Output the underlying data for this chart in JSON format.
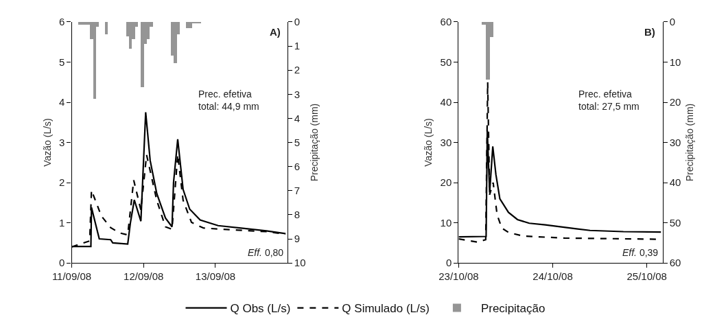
{
  "chart_data": [
    {
      "type": "line",
      "ylabel": "Vazão (L/s)",
      "y2label": "Precipitação (mm)",
      "xlim": [
        "--09-11T00:00",
        "--09-14T00:00"
      ],
      "xticks": [
        {
          "value": "--09-11T00:00",
          "label": "11/09/08"
        },
        {
          "value": "--09-12T00:00",
          "label": "12/09/08"
        },
        {
          "value": "--09-13T00:00",
          "label": "13/09/08"
        }
      ],
      "ylim": [
        0,
        6
      ],
      "yticks": [
        0,
        1,
        2,
        3,
        4,
        5,
        6
      ],
      "y2lim": [
        10,
        0
      ],
      "y2ticks": [
        0,
        1,
        2,
        3,
        4,
        5,
        6,
        7,
        8,
        9,
        10
      ],
      "legend": "bottom",
      "marker": "none",
      "annotations": [
        "A)",
        "Prec. efetiva\ntotal: 44,9 mm",
        "Eff. 0,80"
      ],
      "series": [
        {
          "name": "Q Obs (L/s)",
          "color": "#000000",
          "line_style": "solid",
          "x": [
            "--09-11T00:00",
            "--09-11T06:24",
            "--09-11T06:36",
            "--09-11T09:12",
            "--09-11T13:00",
            "--09-11T13:42",
            "--09-11T18:42",
            "--09-11T19:36",
            "--09-11T20:54",
            "--09-11T23:06",
            "--09-12T00:42",
            "--09-12T02:12",
            "--09-12T04:24",
            "--09-12T07:18",
            "--09-12T09:30",
            "--09-12T10:00",
            "--09-12T11:24",
            "--09-12T13:12",
            "--09-12T15:24",
            "--09-12T18:54",
            "--09-13T00:54",
            "--09-13T09:42",
            "--09-13T17:00",
            "--09-13T23:24"
          ],
          "values": [
            0.41,
            0.41,
            1.38,
            0.6,
            0.58,
            0.5,
            0.47,
            1.0,
            1.57,
            1.04,
            3.75,
            2.55,
            1.73,
            1.12,
            0.9,
            2.0,
            3.08,
            1.83,
            1.34,
            1.07,
            0.93,
            0.86,
            0.8,
            0.73
          ]
        },
        {
          "name": "Q Simulado (L/s)",
          "color": "#000000",
          "line_style": "dashed",
          "x": [
            "--09-11T00:00",
            "--09-11T06:00",
            "--09-11T06:36",
            "--09-11T09:54",
            "--09-11T13:00",
            "--09-11T15:54",
            "--09-11T18:42",
            "--09-11T20:42",
            "--09-11T23:06",
            "--09-12T01:00",
            "--09-12T04:24",
            "--09-12T07:18",
            "--09-12T09:30",
            "--09-12T11:24",
            "--09-12T13:12",
            "--09-12T16:00",
            "--09-12T20:00",
            "--09-13T02:00",
            "--09-13T17:00",
            "--09-13T23:24"
          ],
          "values": [
            0.4,
            0.55,
            1.81,
            1.17,
            0.88,
            0.75,
            0.7,
            2.06,
            1.32,
            2.69,
            1.56,
            0.9,
            0.84,
            2.7,
            1.56,
            1.01,
            0.87,
            0.84,
            0.78,
            0.72
          ]
        },
        {
          "name": "Precipitação",
          "type": "bar",
          "axis": "y2",
          "color": "#959595",
          "x": [
            "--09-11T02:30",
            "--09-11T03:30",
            "--09-11T04:30",
            "--09-11T05:30",
            "--09-11T06:30",
            "--09-11T07:30",
            "--09-11T08:30",
            "--09-11T11:30",
            "--09-11T18:30",
            "--09-11T19:30",
            "--09-11T20:30",
            "--09-11T21:30",
            "--09-11T23:30",
            "--09-12T00:30",
            "--09-12T01:30",
            "--09-12T02:30",
            "--09-12T09:30",
            "--09-12T10:30",
            "--09-12T11:30",
            "--09-12T14:30",
            "--09-12T15:30",
            "--09-12T16:30",
            "--09-12T17:30",
            "--09-12T18:30"
          ],
          "values": [
            0.1,
            0.1,
            0.1,
            0.1,
            0.7,
            3.2,
            0.2,
            0.5,
            0.6,
            1.1,
            0.7,
            0.2,
            2.7,
            0.9,
            0.7,
            0.2,
            1.4,
            1.7,
            0.5,
            0.25,
            0.25,
            0.05,
            0.05,
            0.05
          ]
        }
      ]
    },
    {
      "type": "line",
      "ylabel": "Vazão (L/s)",
      "y2label": "Precipitação (mm)",
      "xlim": [
        "--10-23T00:00",
        "--10-25T04:00"
      ],
      "xticks": [
        {
          "value": "--10-23T00:00",
          "label": "23/10/08"
        },
        {
          "value": "--10-24T00:00",
          "label": "24/10/08"
        },
        {
          "value": "--10-25T00:00",
          "label": "25/10/08"
        }
      ],
      "ylim": [
        0,
        60
      ],
      "yticks": [
        0,
        10,
        20,
        30,
        40,
        50,
        60
      ],
      "y2lim": [
        60,
        0
      ],
      "y2ticks": [
        0,
        10,
        20,
        30,
        40,
        50,
        60
      ],
      "legend": "bottom",
      "marker": "none",
      "annotations": [
        "B)",
        "Prec. efetiva\ntotal: 27,5 mm",
        "Eff. 0,39"
      ],
      "series": [
        {
          "name": "Q Obs (L/s)",
          "color": "#000000",
          "line_style": "solid",
          "x": [
            "--10-23T00:00",
            "--10-23T07:00",
            "--10-23T07:18",
            "--10-23T07:54",
            "--10-23T08:42",
            "--10-23T09:30",
            "--10-23T10:30",
            "--10-23T12:42",
            "--10-23T15:00",
            "--10-23T18:00",
            "--10-23T22:06",
            "--10-24T06:00",
            "--10-24T09:30",
            "--10-24T18:00",
            "--10-25T03:36"
          ],
          "values": [
            6.5,
            6.6,
            33,
            17.5,
            29,
            22,
            16,
            12.6,
            10.8,
            9.9,
            9.5,
            8.5,
            8.1,
            7.8,
            7.7
          ]
        },
        {
          "name": "Q Simulado (L/s)",
          "color": "#000000",
          "line_style": "dashed",
          "x": [
            "--10-23T00:00",
            "--10-23T04:42",
            "--10-23T06:54",
            "--10-23T07:24",
            "--10-23T07:54",
            "--10-23T08:48",
            "--10-23T09:48",
            "--10-23T11:00",
            "--10-23T12:42",
            "--10-23T16:30",
            "--10-24T03:00",
            "--10-25T03:36"
          ],
          "values": [
            6.0,
            5.2,
            5.8,
            45,
            17,
            20,
            12,
            8.7,
            7.6,
            6.7,
            6.2,
            5.9
          ]
        },
        {
          "name": "Precipitação",
          "type": "bar",
          "axis": "y2",
          "color": "#959595",
          "x": [
            "--10-23T06:30",
            "--10-23T07:30",
            "--10-23T08:30"
          ],
          "values": [
            0.7,
            14.4,
            3.8
          ]
        }
      ]
    }
  ]
}
